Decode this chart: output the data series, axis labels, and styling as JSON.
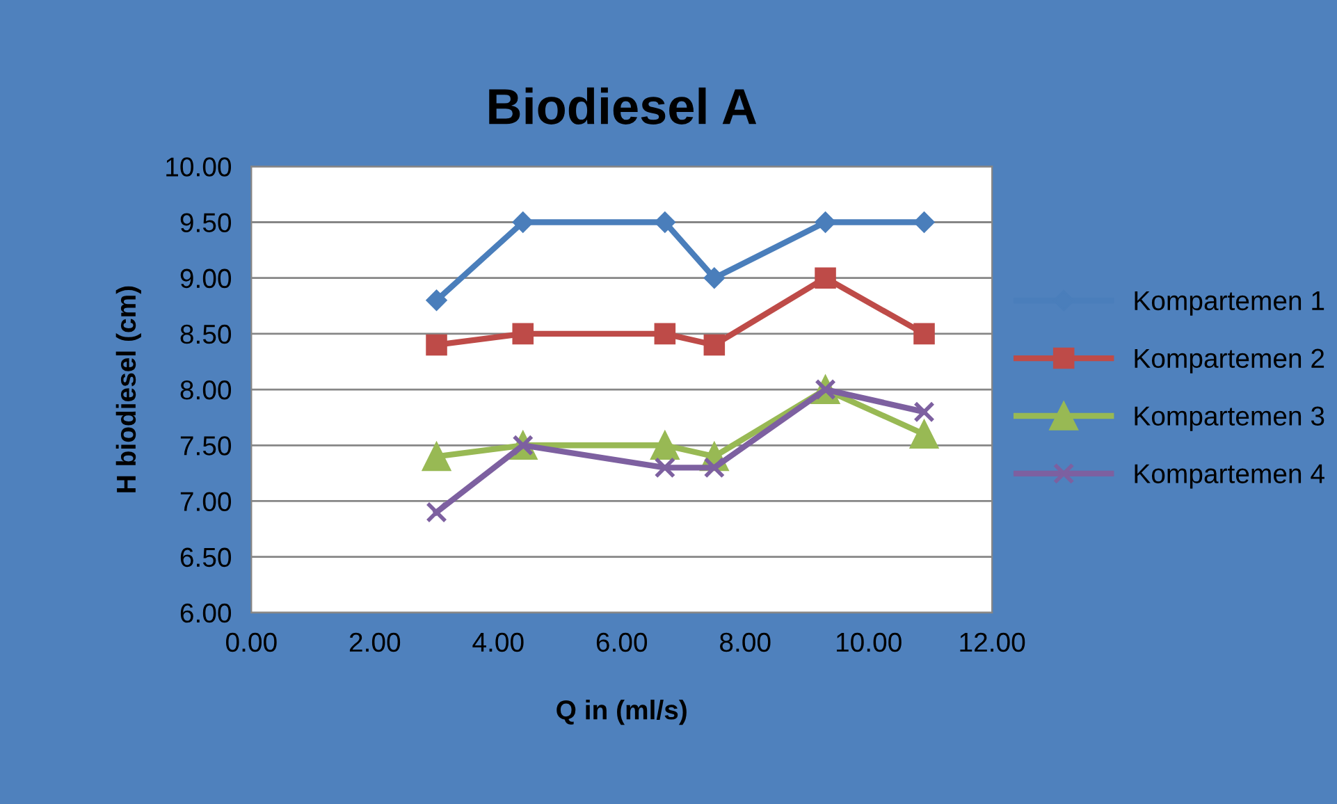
{
  "chart_data": {
    "type": "line",
    "title": "Biodiesel A",
    "xlabel": "Q in (ml/s)",
    "ylabel": "H biodiesel (cm)",
    "x": [
      3.0,
      4.4,
      6.7,
      7.5,
      9.3,
      10.9
    ],
    "series": [
      {
        "name": "Kompartemen 1",
        "color": "#4a7ebb",
        "marker": "diamond",
        "values": [
          8.8,
          9.5,
          9.5,
          9.0,
          9.5,
          9.5
        ]
      },
      {
        "name": "Kompartemen 2",
        "color": "#be4b48",
        "marker": "square",
        "values": [
          8.4,
          8.5,
          8.5,
          8.4,
          9.0,
          8.5
        ]
      },
      {
        "name": "Kompartemen 3",
        "color": "#98b954",
        "marker": "triangle",
        "values": [
          7.4,
          7.5,
          7.5,
          7.4,
          8.0,
          7.6
        ]
      },
      {
        "name": "Kompartemen 4",
        "color": "#7d60a0",
        "marker": "cross",
        "values": [
          6.9,
          7.5,
          7.3,
          7.3,
          8.0,
          7.8
        ]
      }
    ],
    "xlim": [
      0,
      12
    ],
    "ylim": [
      6,
      10
    ],
    "xticks": [
      {
        "value": 0,
        "label": "0.00"
      },
      {
        "value": 2,
        "label": "2.00"
      },
      {
        "value": 4,
        "label": "4.00"
      },
      {
        "value": 6,
        "label": "6.00"
      },
      {
        "value": 8,
        "label": "8.00"
      },
      {
        "value": 10,
        "label": "10.00"
      },
      {
        "value": 12,
        "label": "12.00"
      }
    ],
    "yticks": [
      {
        "value": 6,
        "label": "6.00"
      },
      {
        "value": 6.5,
        "label": "6.50"
      },
      {
        "value": 7,
        "label": "7.00"
      },
      {
        "value": 7.5,
        "label": "7.50"
      },
      {
        "value": 8,
        "label": "8.00"
      },
      {
        "value": 8.5,
        "label": "8.50"
      },
      {
        "value": 9,
        "label": "9.00"
      },
      {
        "value": 9.5,
        "label": "9.50"
      },
      {
        "value": 10,
        "label": "10.00"
      }
    ],
    "grid": "y",
    "legend": "right",
    "line_style": "solid"
  }
}
